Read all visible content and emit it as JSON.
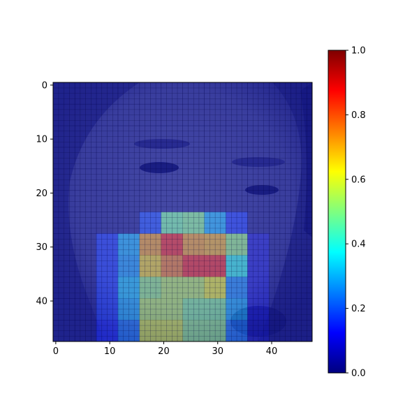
{
  "chart_data": {
    "type": "heatmap",
    "title": "",
    "xlabel": "",
    "ylabel": "",
    "image_size": 48,
    "background": "grayscale face photo (48x48) shown under a semi-transparent jet-colormap heatmap overlay with a pixel grid",
    "overlay_block_size": 4,
    "overlay_alpha": 0.45,
    "xlim": [
      -0.5,
      47.5
    ],
    "ylim": [
      47.5,
      -0.5
    ],
    "xticks": [
      0,
      10,
      20,
      30,
      40
    ],
    "yticks": [
      0,
      10,
      20,
      30,
      40
    ],
    "colormap": "jet",
    "colorbar": {
      "range": [
        0.0,
        1.0
      ],
      "ticks": [
        0.0,
        0.2,
        0.4,
        0.6,
        0.8,
        1.0
      ],
      "tick_labels": [
        "0.0",
        "0.2",
        "0.4",
        "0.6",
        "0.8",
        "1.0"
      ]
    },
    "blocks_rows": 12,
    "blocks_cols": 12,
    "values": [
      [
        0,
        0,
        0,
        0,
        0,
        0,
        0,
        0,
        0,
        0,
        0,
        0
      ],
      [
        0,
        0,
        0,
        0,
        0,
        0,
        0,
        0,
        0,
        0,
        0,
        0
      ],
      [
        0,
        0,
        0,
        0,
        0,
        0,
        0,
        0,
        0,
        0,
        0,
        0
      ],
      [
        0,
        0,
        0,
        0,
        0,
        0,
        0,
        0,
        0,
        0,
        0,
        0
      ],
      [
        0,
        0,
        0,
        0,
        0,
        0,
        0,
        0,
        0,
        0,
        0,
        0
      ],
      [
        0,
        0,
        0,
        0,
        0,
        0,
        0,
        0,
        0,
        0,
        0,
        0
      ],
      [
        0,
        0,
        0,
        0,
        0.18,
        0.48,
        0.5,
        0.3,
        0.16,
        0,
        0,
        0
      ],
      [
        0,
        0,
        0.16,
        0.3,
        0.72,
        0.86,
        0.72,
        0.7,
        0.52,
        0.08,
        0,
        0
      ],
      [
        0,
        0,
        0.16,
        0.28,
        0.66,
        0.76,
        0.86,
        0.86,
        0.4,
        0.08,
        0,
        0
      ],
      [
        0,
        0,
        0.16,
        0.32,
        0.52,
        0.56,
        0.56,
        0.62,
        0.26,
        0.08,
        0,
        0
      ],
      [
        0,
        0,
        0.16,
        0.3,
        0.56,
        0.56,
        0.5,
        0.5,
        0.3,
        0.08,
        0,
        0
      ],
      [
        0,
        0,
        0.14,
        0.24,
        0.6,
        0.6,
        0.52,
        0.52,
        0.24,
        0.06,
        0,
        0
      ]
    ],
    "colors": {
      "jet_stops": [
        "#00007f",
        "#0000ff",
        "#007fff",
        "#00ffff",
        "#7fff7f",
        "#ffff00",
        "#ff7f00",
        "#ff0000",
        "#7f0000"
      ],
      "grid_line": "#00003a",
      "axes_frame": "#000000"
    }
  }
}
